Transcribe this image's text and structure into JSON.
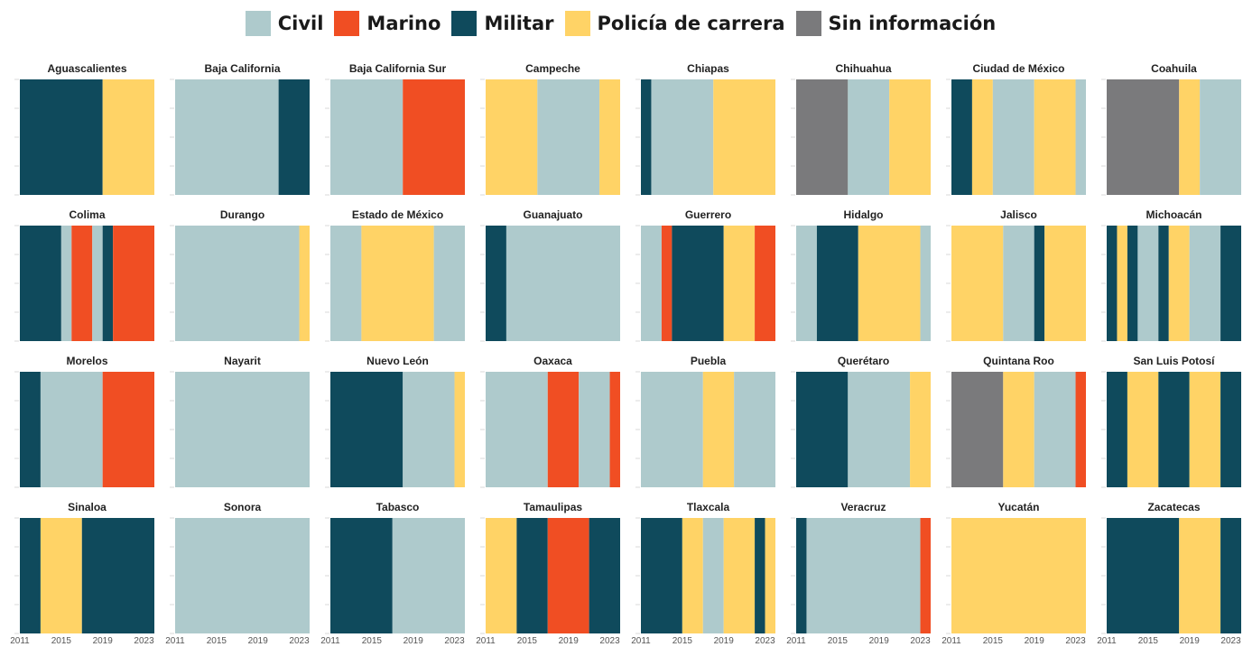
{
  "colors": {
    "Civil": "#aecacc",
    "Marino": "#f04e23",
    "Militar": "#0f4a5c",
    "Policía de carrera": "#ffd366",
    "Sin información": "#7a7a7c"
  },
  "chart_data": {
    "type": "bar",
    "x_range": [
      2011,
      2024
    ],
    "x_ticks": [
      "2011",
      "2015",
      "2019",
      "2023"
    ],
    "legend_placement": "top",
    "legend": [
      "Civil",
      "Marino",
      "Militar",
      "Policía de carrera",
      "Sin información"
    ],
    "panels": [
      {
        "state": "Aguascalientes",
        "segments": [
          {
            "c": "Militar",
            "from": 2011,
            "to": 2019
          },
          {
            "c": "Policía de carrera",
            "from": 2019,
            "to": 2024
          }
        ]
      },
      {
        "state": "Baja California",
        "segments": [
          {
            "c": "Civil",
            "from": 2011,
            "to": 2021
          },
          {
            "c": "Militar",
            "from": 2021,
            "to": 2024
          }
        ]
      },
      {
        "state": "Baja California Sur",
        "segments": [
          {
            "c": "Civil",
            "from": 2011,
            "to": 2018
          },
          {
            "c": "Marino",
            "from": 2018,
            "to": 2024
          }
        ]
      },
      {
        "state": "Campeche",
        "segments": [
          {
            "c": "Policía de carrera",
            "from": 2011,
            "to": 2016
          },
          {
            "c": "Civil",
            "from": 2016,
            "to": 2022
          },
          {
            "c": "Policía de carrera",
            "from": 2022,
            "to": 2024
          }
        ]
      },
      {
        "state": "Chiapas",
        "segments": [
          {
            "c": "Militar",
            "from": 2011,
            "to": 2012
          },
          {
            "c": "Civil",
            "from": 2012,
            "to": 2018
          },
          {
            "c": "Policía de carrera",
            "from": 2018,
            "to": 2024
          }
        ]
      },
      {
        "state": "Chihuahua",
        "segments": [
          {
            "c": "Sin información",
            "from": 2011,
            "to": 2016
          },
          {
            "c": "Civil",
            "from": 2016,
            "to": 2020
          },
          {
            "c": "Policía de carrera",
            "from": 2020,
            "to": 2024
          }
        ]
      },
      {
        "state": "Ciudad de México",
        "segments": [
          {
            "c": "Militar",
            "from": 2011,
            "to": 2013
          },
          {
            "c": "Policía de carrera",
            "from": 2013,
            "to": 2015
          },
          {
            "c": "Civil",
            "from": 2015,
            "to": 2019
          },
          {
            "c": "Policía de carrera",
            "from": 2019,
            "to": 2023
          },
          {
            "c": "Civil",
            "from": 2023,
            "to": 2024
          }
        ]
      },
      {
        "state": "Coahuila",
        "segments": [
          {
            "c": "Sin información",
            "from": 2011,
            "to": 2018
          },
          {
            "c": "Policía de carrera",
            "from": 2018,
            "to": 2020
          },
          {
            "c": "Civil",
            "from": 2020,
            "to": 2024
          }
        ]
      },
      {
        "state": "Colima",
        "segments": [
          {
            "c": "Militar",
            "from": 2011,
            "to": 2015
          },
          {
            "c": "Civil",
            "from": 2015,
            "to": 2016
          },
          {
            "c": "Marino",
            "from": 2016,
            "to": 2018
          },
          {
            "c": "Civil",
            "from": 2018,
            "to": 2019
          },
          {
            "c": "Militar",
            "from": 2019,
            "to": 2020
          },
          {
            "c": "Marino",
            "from": 2020,
            "to": 2024
          }
        ]
      },
      {
        "state": "Durango",
        "segments": [
          {
            "c": "Civil",
            "from": 2011,
            "to": 2023
          },
          {
            "c": "Policía de carrera",
            "from": 2023,
            "to": 2024
          }
        ]
      },
      {
        "state": "Estado de México",
        "segments": [
          {
            "c": "Civil",
            "from": 2011,
            "to": 2014
          },
          {
            "c": "Policía de carrera",
            "from": 2014,
            "to": 2021
          },
          {
            "c": "Civil",
            "from": 2021,
            "to": 2024
          }
        ]
      },
      {
        "state": "Guanajuato",
        "segments": [
          {
            "c": "Militar",
            "from": 2011,
            "to": 2013
          },
          {
            "c": "Civil",
            "from": 2013,
            "to": 2024
          }
        ]
      },
      {
        "state": "Guerrero",
        "segments": [
          {
            "c": "Civil",
            "from": 2011,
            "to": 2013
          },
          {
            "c": "Marino",
            "from": 2013,
            "to": 2014
          },
          {
            "c": "Militar",
            "from": 2014,
            "to": 2019
          },
          {
            "c": "Policía de carrera",
            "from": 2019,
            "to": 2022
          },
          {
            "c": "Marino",
            "from": 2022,
            "to": 2024
          }
        ]
      },
      {
        "state": "Hidalgo",
        "segments": [
          {
            "c": "Civil",
            "from": 2011,
            "to": 2013
          },
          {
            "c": "Militar",
            "from": 2013,
            "to": 2017
          },
          {
            "c": "Policía de carrera",
            "from": 2017,
            "to": 2023
          },
          {
            "c": "Civil",
            "from": 2023,
            "to": 2024
          }
        ]
      },
      {
        "state": "Jalisco",
        "segments": [
          {
            "c": "Policía de carrera",
            "from": 2011,
            "to": 2016
          },
          {
            "c": "Civil",
            "from": 2016,
            "to": 2019
          },
          {
            "c": "Militar",
            "from": 2019,
            "to": 2020
          },
          {
            "c": "Policía de carrera",
            "from": 2020,
            "to": 2024
          }
        ]
      },
      {
        "state": "Michoacán",
        "segments": [
          {
            "c": "Militar",
            "from": 2011,
            "to": 2012
          },
          {
            "c": "Policía de carrera",
            "from": 2012,
            "to": 2013
          },
          {
            "c": "Militar",
            "from": 2013,
            "to": 2014
          },
          {
            "c": "Civil",
            "from": 2014,
            "to": 2016
          },
          {
            "c": "Militar",
            "from": 2016,
            "to": 2017
          },
          {
            "c": "Policía de carrera",
            "from": 2017,
            "to": 2019
          },
          {
            "c": "Civil",
            "from": 2019,
            "to": 2022
          },
          {
            "c": "Militar",
            "from": 2022,
            "to": 2024
          }
        ]
      },
      {
        "state": "Morelos",
        "segments": [
          {
            "c": "Militar",
            "from": 2011,
            "to": 2013
          },
          {
            "c": "Civil",
            "from": 2013,
            "to": 2019
          },
          {
            "c": "Marino",
            "from": 2019,
            "to": 2024
          }
        ]
      },
      {
        "state": "Nayarit",
        "segments": [
          {
            "c": "Civil",
            "from": 2011,
            "to": 2024
          }
        ]
      },
      {
        "state": "Nuevo León",
        "segments": [
          {
            "c": "Militar",
            "from": 2011,
            "to": 2018
          },
          {
            "c": "Civil",
            "from": 2018,
            "to": 2023
          },
          {
            "c": "Policía de carrera",
            "from": 2023,
            "to": 2024
          }
        ]
      },
      {
        "state": "Oaxaca",
        "segments": [
          {
            "c": "Civil",
            "from": 2011,
            "to": 2017
          },
          {
            "c": "Marino",
            "from": 2017,
            "to": 2020
          },
          {
            "c": "Civil",
            "from": 2020,
            "to": 2023
          },
          {
            "c": "Marino",
            "from": 2023,
            "to": 2024
          }
        ]
      },
      {
        "state": "Puebla",
        "segments": [
          {
            "c": "Civil",
            "from": 2011,
            "to": 2017
          },
          {
            "c": "Policía de carrera",
            "from": 2017,
            "to": 2020
          },
          {
            "c": "Civil",
            "from": 2020,
            "to": 2024
          }
        ]
      },
      {
        "state": "Querétaro",
        "segments": [
          {
            "c": "Militar",
            "from": 2011,
            "to": 2016
          },
          {
            "c": "Civil",
            "from": 2016,
            "to": 2022
          },
          {
            "c": "Policía de carrera",
            "from": 2022,
            "to": 2024
          }
        ]
      },
      {
        "state": "Quintana Roo",
        "segments": [
          {
            "c": "Sin información",
            "from": 2011,
            "to": 2016
          },
          {
            "c": "Policía de carrera",
            "from": 2016,
            "to": 2019
          },
          {
            "c": "Civil",
            "from": 2019,
            "to": 2023
          },
          {
            "c": "Marino",
            "from": 2023,
            "to": 2024
          }
        ]
      },
      {
        "state": "San Luis Potosí",
        "segments": [
          {
            "c": "Militar",
            "from": 2011,
            "to": 2013
          },
          {
            "c": "Policía de carrera",
            "from": 2013,
            "to": 2016
          },
          {
            "c": "Militar",
            "from": 2016,
            "to": 2019
          },
          {
            "c": "Policía de carrera",
            "from": 2019,
            "to": 2022
          },
          {
            "c": "Militar",
            "from": 2022,
            "to": 2024
          }
        ]
      },
      {
        "state": "Sinaloa",
        "segments": [
          {
            "c": "Militar",
            "from": 2011,
            "to": 2013
          },
          {
            "c": "Policía de carrera",
            "from": 2013,
            "to": 2017
          },
          {
            "c": "Militar",
            "from": 2017,
            "to": 2024
          }
        ]
      },
      {
        "state": "Sonora",
        "segments": [
          {
            "c": "Civil",
            "from": 2011,
            "to": 2024
          }
        ]
      },
      {
        "state": "Tabasco",
        "segments": [
          {
            "c": "Militar",
            "from": 2011,
            "to": 2017
          },
          {
            "c": "Civil",
            "from": 2017,
            "to": 2024
          }
        ]
      },
      {
        "state": "Tamaulipas",
        "segments": [
          {
            "c": "Policía de carrera",
            "from": 2011,
            "to": 2014
          },
          {
            "c": "Militar",
            "from": 2014,
            "to": 2017
          },
          {
            "c": "Marino",
            "from": 2017,
            "to": 2021
          },
          {
            "c": "Militar",
            "from": 2021,
            "to": 2024
          }
        ]
      },
      {
        "state": "Tlaxcala",
        "segments": [
          {
            "c": "Militar",
            "from": 2011,
            "to": 2015
          },
          {
            "c": "Policía de carrera",
            "from": 2015,
            "to": 2017
          },
          {
            "c": "Civil",
            "from": 2017,
            "to": 2019
          },
          {
            "c": "Policía de carrera",
            "from": 2019,
            "to": 2022
          },
          {
            "c": "Militar",
            "from": 2022,
            "to": 2023
          },
          {
            "c": "Policía de carrera",
            "from": 2023,
            "to": 2024
          }
        ]
      },
      {
        "state": "Veracruz",
        "segments": [
          {
            "c": "Militar",
            "from": 2011,
            "to": 2012
          },
          {
            "c": "Civil",
            "from": 2012,
            "to": 2023
          },
          {
            "c": "Marino",
            "from": 2023,
            "to": 2024
          }
        ]
      },
      {
        "state": "Yucatán",
        "segments": [
          {
            "c": "Policía de carrera",
            "from": 2011,
            "to": 2024
          }
        ]
      },
      {
        "state": "Zacatecas",
        "segments": [
          {
            "c": "Militar",
            "from": 2011,
            "to": 2018
          },
          {
            "c": "Policía de carrera",
            "from": 2018,
            "to": 2022
          },
          {
            "c": "Militar",
            "from": 2022,
            "to": 2024
          }
        ]
      }
    ]
  }
}
